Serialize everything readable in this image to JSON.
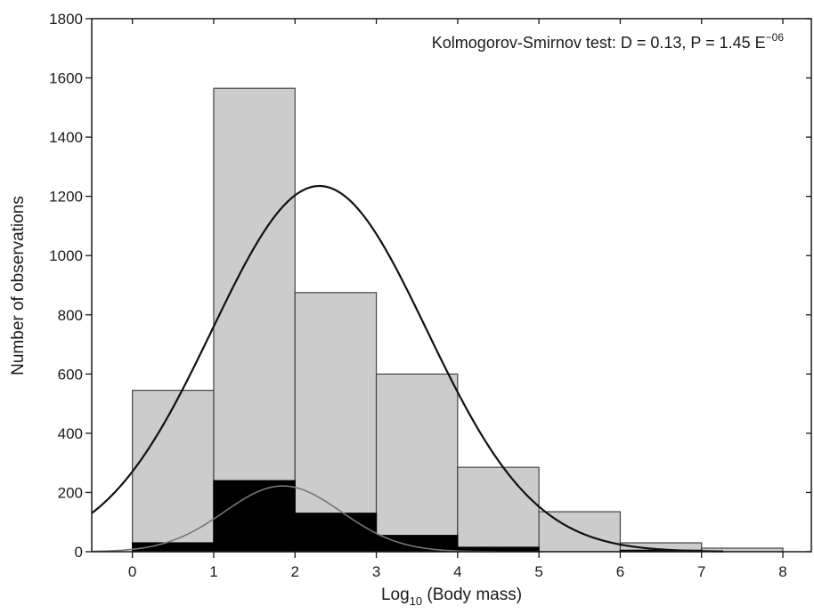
{
  "chart_data": {
    "type": "bar",
    "xlabel": {
      "prefix": "Log",
      "subscript": "10",
      "suffix": " (Body mass)"
    },
    "ylabel": "Number of observations",
    "xlim": [
      -0.5,
      8.35
    ],
    "ylim": [
      0,
      1800
    ],
    "x_ticks": [
      0,
      1,
      2,
      3,
      4,
      5,
      6,
      7,
      8
    ],
    "y_ticks": [
      0,
      200,
      400,
      600,
      800,
      1000,
      1200,
      1400,
      1600,
      1800
    ],
    "bin_edges": [
      0,
      1,
      2,
      3,
      4,
      5,
      6,
      7,
      8
    ],
    "grid": false,
    "annotation": {
      "text": "Kolmogorov-Smirnov test: D = 0.13, P = 1.45 E",
      "superscript": "−06"
    },
    "series": [
      {
        "kind": "histogram",
        "color": "#cccccc",
        "values": [
          545,
          1565,
          875,
          600,
          285,
          135,
          30,
          12
        ]
      },
      {
        "kind": "histogram",
        "color": "#000000",
        "values": [
          30,
          240,
          130,
          55,
          15,
          0,
          5,
          0
        ]
      },
      {
        "kind": "normal-curve",
        "color": "#111111",
        "mean": 2.3,
        "sd": 1.32,
        "peak": 1235
      },
      {
        "kind": "normal-curve",
        "color": "#777777",
        "mean": 1.85,
        "sd": 0.72,
        "peak": 222
      }
    ]
  }
}
